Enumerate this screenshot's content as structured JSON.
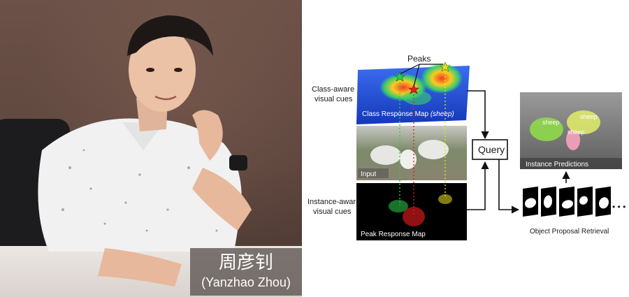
{
  "caption": {
    "name_zh": "周彦钊",
    "name_en": "(Yanzhao Zhou)"
  },
  "diagram": {
    "peaks_label": "Peaks",
    "class_aware_line1": "Class-aware",
    "class_aware_line2": "visual cues",
    "class_response_map": "Class Response Map",
    "class_response_map_class": "(sheep)",
    "input_label": "Input",
    "instance_aware_line1": "Instance-aware",
    "instance_aware_line2": "visual cues",
    "peak_response_map": "Peak Response Map",
    "query_label": "Query",
    "instance_predictions": "Instance Predictions",
    "sheep_label_1": "sheep",
    "sheep_label_2": "sheep",
    "sheep_label_3": "sheep",
    "object_proposal_retrieval": "Object Proposal Retrieval",
    "ellipsis": "• • •"
  },
  "colors": {
    "peak_green": "#2bd04a",
    "peak_red": "#e02020",
    "peak_yellow": "#e6e020",
    "map_blue": "#1f4fd8",
    "caption_bg": "#5a5250"
  }
}
